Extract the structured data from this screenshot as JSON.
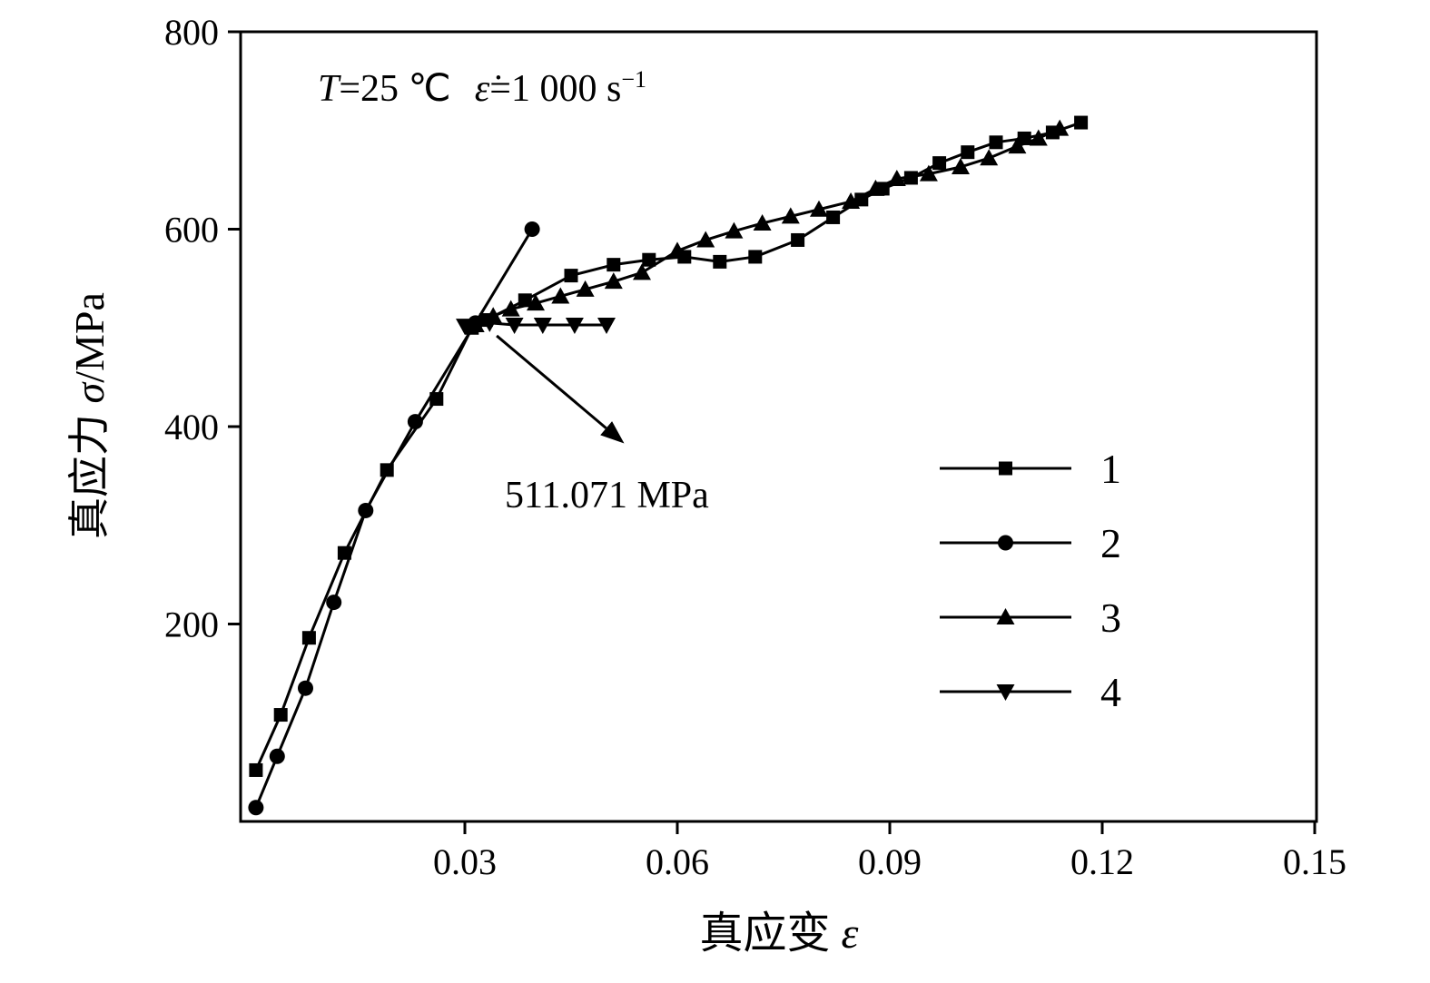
{
  "figure": {
    "background": "#ffffff",
    "ink": "#000000"
  },
  "chart_data": {
    "type": "line",
    "title_annotation": {
      "t_var": "T",
      "t_eq": "=25 ℃",
      "rate_var": "ε̇",
      "rate_eq": "=1 000 s",
      "rate_sup": "−1"
    },
    "xlabel_prefix": "真应变 ",
    "xlabel_symbol": "ε",
    "ylabel_prefix": "真应力 ",
    "ylabel_symbol": "σ",
    "ylabel_suffix": "/MPa",
    "xlim": [
      0,
      0.15
    ],
    "ylim": [
      0,
      800
    ],
    "grid": false,
    "legend_position": "inside-right",
    "xticks": [
      0.03,
      0.06,
      0.09,
      0.12,
      0.15
    ],
    "xtick_labels": [
      "0.03",
      "0.06",
      "0.09",
      "0.12",
      "0.15"
    ],
    "yticks": [
      200,
      400,
      600,
      800
    ],
    "ytick_labels": [
      "200",
      "400",
      "600",
      "800"
    ],
    "annotation": {
      "text": "511.071 MPa",
      "point_value_mpa": 511.071,
      "arrow_from_xy": [
        0.0345,
        492
      ],
      "arrow_to_xy": [
        0.0525,
        383
      ]
    },
    "legend": [
      {
        "label": "1",
        "marker": "square"
      },
      {
        "label": "2",
        "marker": "circle"
      },
      {
        "label": "3",
        "marker": "triangle-up"
      },
      {
        "label": "4",
        "marker": "triangle-down"
      }
    ],
    "series": [
      {
        "name": "1",
        "marker": "square",
        "color": "#000000",
        "points": [
          [
            0.0005,
            52
          ],
          [
            0.004,
            108
          ],
          [
            0.008,
            186
          ],
          [
            0.013,
            272
          ],
          [
            0.019,
            356
          ],
          [
            0.026,
            428
          ],
          [
            0.031,
            500
          ],
          [
            0.033,
            508
          ],
          [
            0.0385,
            528
          ],
          [
            0.045,
            553
          ],
          [
            0.051,
            564
          ],
          [
            0.056,
            569
          ],
          [
            0.061,
            572
          ],
          [
            0.066,
            567
          ],
          [
            0.071,
            572
          ],
          [
            0.077,
            589
          ],
          [
            0.082,
            612
          ],
          [
            0.086,
            630
          ],
          [
            0.089,
            641
          ],
          [
            0.093,
            652
          ],
          [
            0.097,
            667
          ],
          [
            0.101,
            678
          ],
          [
            0.105,
            688
          ],
          [
            0.109,
            692
          ],
          [
            0.113,
            698
          ],
          [
            0.117,
            708
          ]
        ]
      },
      {
        "name": "2",
        "marker": "circle",
        "color": "#000000",
        "points": [
          [
            0.0005,
            14
          ],
          [
            0.0035,
            66
          ],
          [
            0.0075,
            135
          ],
          [
            0.0115,
            222
          ],
          [
            0.016,
            315
          ],
          [
            0.023,
            405
          ],
          [
            0.0315,
            505
          ],
          [
            0.0395,
            600
          ]
        ]
      },
      {
        "name": "3",
        "marker": "triangle-up",
        "color": "#000000",
        "points": [
          [
            0.0315,
            503
          ],
          [
            0.034,
            512
          ],
          [
            0.0365,
            519
          ],
          [
            0.04,
            525
          ],
          [
            0.0435,
            532
          ],
          [
            0.047,
            539
          ],
          [
            0.051,
            547
          ],
          [
            0.055,
            556
          ],
          [
            0.06,
            578
          ],
          [
            0.064,
            589
          ],
          [
            0.068,
            598
          ],
          [
            0.072,
            606
          ],
          [
            0.076,
            613
          ],
          [
            0.08,
            620
          ],
          [
            0.0845,
            628
          ],
          [
            0.088,
            641
          ],
          [
            0.091,
            651
          ],
          [
            0.0955,
            656
          ],
          [
            0.1,
            663
          ],
          [
            0.104,
            672
          ],
          [
            0.108,
            684
          ],
          [
            0.111,
            692
          ],
          [
            0.114,
            702
          ]
        ]
      },
      {
        "name": "4",
        "marker": "triangle-down",
        "color": "#000000",
        "points": [
          [
            0.03,
            502
          ],
          [
            0.0335,
            505
          ],
          [
            0.037,
            503
          ],
          [
            0.041,
            503
          ],
          [
            0.0455,
            503
          ],
          [
            0.05,
            503
          ]
        ]
      }
    ]
  }
}
